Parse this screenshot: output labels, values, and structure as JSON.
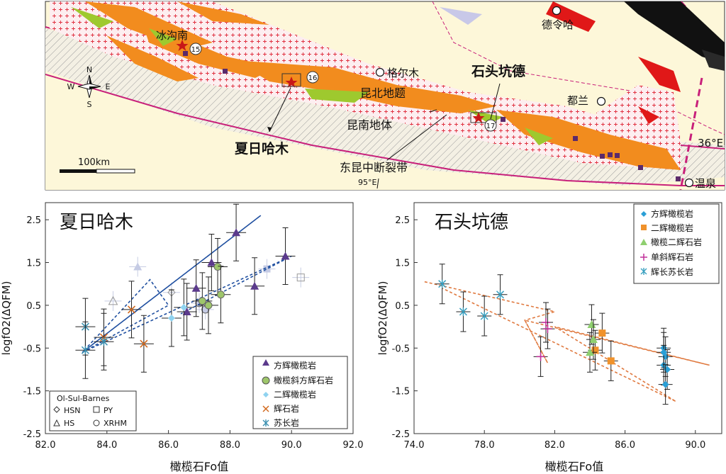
{
  "map": {
    "labels": {
      "bingounan": "冰沟南",
      "geermu": "格尔木",
      "delingha": "德令哈",
      "shitoukengde": "石头坑德",
      "kunbei": "昆北地题",
      "kunnan": "昆南地体",
      "dulan": "都兰",
      "xiarihamu": "夏日哈木",
      "fault": "东昆中断裂带",
      "wenquan": "温泉",
      "lat": "36°E",
      "lon": "95°E",
      "scale": "100km"
    },
    "site_numbers": [
      "15",
      "16",
      "17"
    ],
    "compass": {
      "n": "N",
      "s": "S",
      "e": "E",
      "w": "W"
    }
  },
  "chart_data": [
    {
      "type": "scatter",
      "title": "夏日哈木",
      "xlabel": "橄榄石Fo值",
      "ylabel": "logfO2(ΔQFM)",
      "xlim": [
        82,
        92
      ],
      "ylim": [
        -2.5,
        2.9
      ],
      "xticks": [
        "82.0",
        "84.0",
        "86.0",
        "88.0",
        "90.0",
        "92.0"
      ],
      "yticks": [
        "2.5",
        "1.5",
        "0.5",
        "-0.5",
        "-1.5",
        "-2.5"
      ],
      "legend": {
        "position": "bottom-right",
        "entries": [
          "方辉橄榄岩",
          "橄榄斜方辉石岩",
          "二辉橄榄岩",
          "辉石岩",
          "苏长岩"
        ]
      },
      "ref_legend": {
        "title": "Ol-Sul-Barnes",
        "entries": [
          "HSN",
          "PY",
          "HS",
          "XRHM"
        ]
      },
      "series": [
        {
          "name": "方辉橄榄岩",
          "marker": "triangle",
          "color": "#5b3a8c",
          "points": [
            [
              86.6,
              0.35
            ],
            [
              86.9,
              0.9
            ],
            [
              87.4,
              1.5
            ],
            [
              88.2,
              2.2
            ],
            [
              88.8,
              0.95
            ],
            [
              89.8,
              1.65
            ]
          ]
        },
        {
          "name": "橄榄斜方辉石岩",
          "marker": "circle",
          "color": "#9ec66b",
          "points": [
            [
              87.1,
              0.6
            ],
            [
              87.6,
              1.4
            ],
            [
              87.7,
              0.75
            ],
            [
              87.3,
              0.5
            ]
          ]
        },
        {
          "name": "二辉橄榄岩",
          "marker": "diamond",
          "color": "#8fd3f0",
          "points": [
            [
              86.1,
              0.2
            ],
            [
              86.5,
              0.45
            ]
          ]
        },
        {
          "name": "辉石岩",
          "marker": "x",
          "color": "#d2691e",
          "points": [
            [
              83.9,
              -0.25
            ],
            [
              84.8,
              0.4
            ],
            [
              85.2,
              -0.4
            ]
          ]
        },
        {
          "name": "苏长岩",
          "marker": "asterisk",
          "color": "#3a90b0",
          "points": [
            [
              83.3,
              0.0
            ],
            [
              83.3,
              -0.55
            ],
            [
              83.9,
              -0.35
            ]
          ]
        }
      ],
      "reference": [
        {
          "marker": "triangle",
          "points": [
            [
              85.0,
              1.4
            ]
          ]
        },
        {
          "marker": "triangle-open",
          "points": [
            [
              84.2,
              0.6
            ]
          ]
        },
        {
          "marker": "diamond-open",
          "points": [
            [
              86.1,
              0.8
            ]
          ]
        },
        {
          "marker": "square",
          "points": [
            [
              89.2,
              1.35
            ]
          ]
        },
        {
          "marker": "square-open",
          "points": [
            [
              90.3,
              1.15
            ]
          ]
        },
        {
          "marker": "circle",
          "points": [
            [
              87.2,
              0.4
            ],
            [
              87.0,
              0.55
            ]
          ]
        }
      ]
    },
    {
      "type": "scatter",
      "title": "石头坑德",
      "xlabel": "橄榄石Fo值",
      "ylabel": "logfO2(ΔQFM)",
      "xlim": [
        74,
        91.5
      ],
      "ylim": [
        -2.5,
        2.9
      ],
      "xticks": [
        "74.0",
        "78.0",
        "82.0",
        "86.0",
        "90.0"
      ],
      "yticks": [
        "2.5",
        "1.5",
        "0.5",
        "-0.5",
        "-1.5",
        "-2.5"
      ],
      "legend": {
        "position": "top-right",
        "entries": [
          "方辉橄榄岩",
          "二辉橄榄岩",
          "橄榄二辉石岩",
          "单斜辉石岩",
          "辉长苏长岩"
        ]
      },
      "series": [
        {
          "name": "方辉橄榄岩",
          "marker": "diamond",
          "color": "#2a9fd6",
          "points": [
            [
              88.2,
              -0.5
            ],
            [
              88.3,
              -0.7
            ],
            [
              88.2,
              -0.9
            ],
            [
              88.4,
              -1.0
            ],
            [
              88.3,
              -1.35
            ],
            [
              88.2,
              -0.6
            ]
          ]
        },
        {
          "name": "二辉橄榄岩",
          "marker": "square",
          "color": "#f0922b",
          "points": [
            [
              84.7,
              -0.15
            ],
            [
              84.3,
              -0.55
            ],
            [
              85.2,
              -0.8
            ]
          ]
        },
        {
          "name": "橄榄二辉石岩",
          "marker": "triangle",
          "color": "#8fcf6f",
          "points": [
            [
              84.1,
              0.05
            ],
            [
              84.2,
              -0.3
            ],
            [
              84.0,
              -0.6
            ]
          ]
        },
        {
          "name": "单斜辉石岩",
          "marker": "plus",
          "color": "#c0309a",
          "points": [
            [
              81.5,
              0.1
            ],
            [
              81.6,
              -0.05
            ],
            [
              81.2,
              -0.7
            ]
          ]
        },
        {
          "name": "辉长苏长岩",
          "marker": "asterisk",
          "color": "#3aa0c0",
          "points": [
            [
              75.6,
              1.0
            ],
            [
              76.8,
              0.35
            ],
            [
              78.0,
              0.25
            ],
            [
              78.9,
              0.75
            ]
          ]
        }
      ]
    }
  ]
}
